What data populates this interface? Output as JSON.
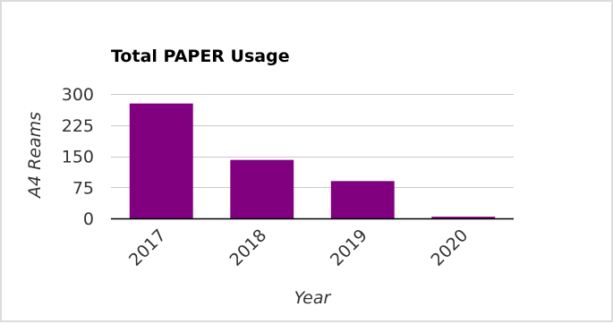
{
  "chart_data": {
    "type": "bar",
    "title": "Total PAPER Usage",
    "xlabel": "Year",
    "ylabel": "A4 Reams",
    "categories": [
      "2017",
      "2018",
      "2019",
      "2020"
    ],
    "values": [
      277,
      141,
      90,
      4
    ],
    "ylim": [
      0,
      300
    ],
    "yticks": [
      0,
      75,
      150,
      225,
      300
    ],
    "ytick_labels": [
      "0",
      "75",
      "150",
      "225",
      "300"
    ],
    "grid": true,
    "legend": "none",
    "bar_color": "#800080",
    "grid_color": "#c8c8c8",
    "axis_color": "#000000"
  }
}
